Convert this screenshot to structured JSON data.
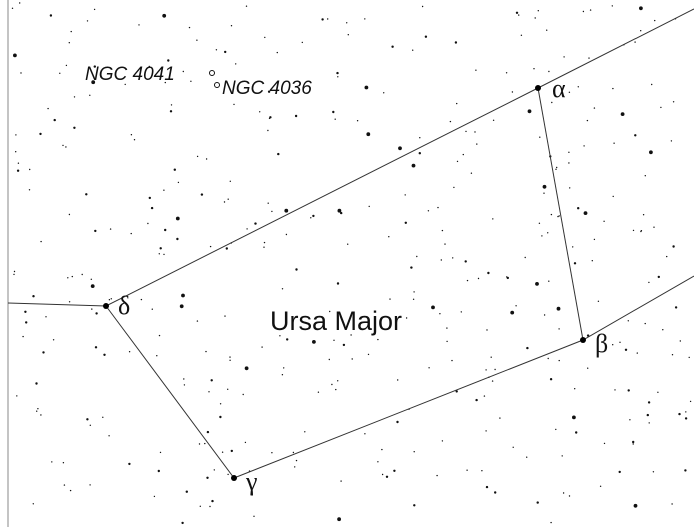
{
  "constellation": "Ursa Major",
  "stars": [
    {
      "label": "α"
    },
    {
      "label": "β"
    },
    {
      "label": "γ"
    },
    {
      "label": "δ"
    }
  ],
  "objects": [
    {
      "label": "NGC 4041"
    },
    {
      "label": "NGC 4036"
    }
  ]
}
